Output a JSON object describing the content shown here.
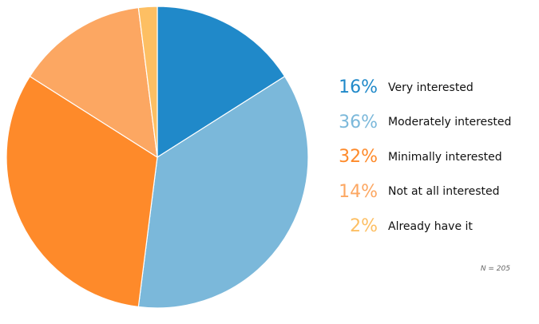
{
  "chart_data": {
    "type": "pie",
    "categories": [
      "Very interested",
      "Moderately interested",
      "Minimally interested",
      "Not at all interested",
      "Already have it"
    ],
    "values": [
      16,
      36,
      32,
      14,
      2
    ],
    "value_labels": [
      "16%",
      "36%",
      "32%",
      "14%",
      "2%"
    ],
    "colors": [
      "#2089c9",
      "#7bb8da",
      "#fe8a2a",
      "#fca762",
      "#fdbf63"
    ],
    "start_angle_deg": 0,
    "direction": "clockwise",
    "legend_position": "right",
    "note": "N = 205"
  }
}
